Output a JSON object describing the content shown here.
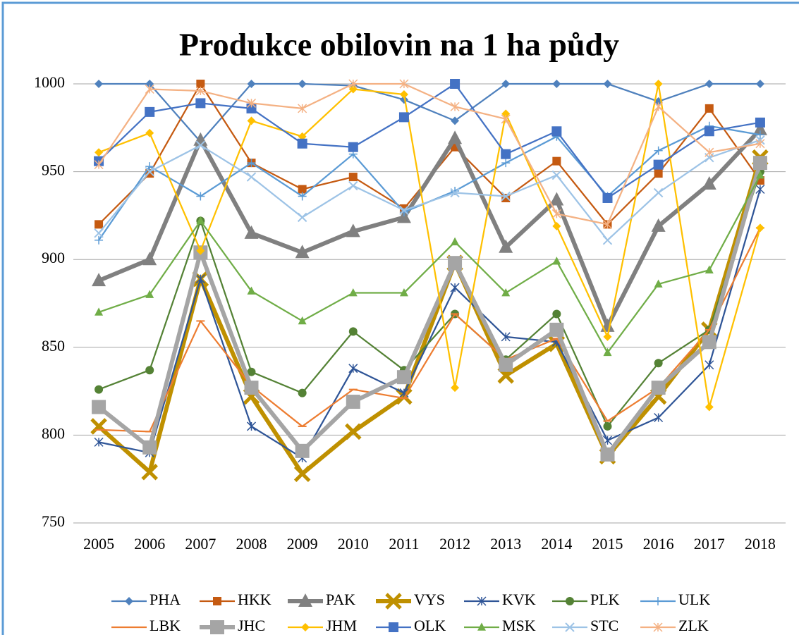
{
  "chart_data": {
    "type": "line",
    "title": "Produkce obilovin na 1 ha půdy",
    "categories": [
      "2005",
      "2006",
      "2007",
      "2008",
      "2009",
      "2010",
      "2011",
      "2012",
      "2013",
      "2014",
      "2015",
      "2016",
      "2017",
      "2018"
    ],
    "ylim": [
      750,
      1000
    ],
    "yticks": [
      750,
      800,
      850,
      900,
      950,
      1000
    ],
    "grid": true,
    "legend": "bottom",
    "series": [
      {
        "name": "PHA",
        "color": "#4f81bd",
        "marker": "diamond",
        "values": [
          1000,
          1000,
          967,
          1000,
          1000,
          999,
          991,
          979,
          1000,
          1000,
          1000,
          990,
          1000,
          1000
        ]
      },
      {
        "name": "HKK",
        "color": "#c55a11",
        "marker": "square",
        "values": [
          920,
          949,
          1000,
          955,
          940,
          947,
          929,
          964,
          935,
          956,
          920,
          949,
          986,
          945
        ]
      },
      {
        "name": "PAK",
        "color": "#808080",
        "marker": "triangle",
        "values": [
          888,
          900,
          968,
          915,
          904,
          916,
          924,
          969,
          907,
          934,
          862,
          919,
          943,
          974
        ]
      },
      {
        "name": "VYS",
        "color": "#bf9000",
        "marker": "x",
        "values": [
          805,
          779,
          889,
          822,
          778,
          802,
          822,
          898,
          834,
          852,
          788,
          822,
          860,
          958
        ]
      },
      {
        "name": "KVK",
        "color": "#2f5597",
        "marker": "star",
        "values": [
          796,
          790,
          889,
          805,
          787,
          838,
          824,
          884,
          856,
          853,
          797,
          810,
          840,
          940
        ]
      },
      {
        "name": "PLK",
        "color": "#548235",
        "marker": "circle",
        "values": [
          826,
          837,
          922,
          836,
          824,
          859,
          837,
          869,
          843,
          869,
          805,
          841,
          860,
          950
        ]
      },
      {
        "name": "ULK",
        "color": "#5b9bd5",
        "marker": "plus",
        "values": [
          911,
          953,
          936,
          955,
          936,
          960,
          927,
          939,
          955,
          970,
          936,
          962,
          976,
          971
        ]
      },
      {
        "name": "LBK",
        "color": "#ed7d31",
        "marker": "dash",
        "values": [
          803,
          802,
          865,
          828,
          805,
          826,
          821,
          869,
          843,
          855,
          808,
          827,
          860,
          918
        ]
      },
      {
        "name": "JHC",
        "color": "#a5a5a5",
        "marker": "square",
        "values": [
          816,
          793,
          904,
          827,
          791,
          819,
          833,
          898,
          840,
          860,
          789,
          827,
          853,
          955
        ]
      },
      {
        "name": "JHM",
        "color": "#ffc000",
        "marker": "diamond",
        "values": [
          961,
          972,
          905,
          979,
          970,
          997,
          994,
          827,
          983,
          919,
          856,
          1000,
          816,
          918
        ]
      },
      {
        "name": "OLK",
        "color": "#4472c4",
        "marker": "square",
        "values": [
          956,
          984,
          989,
          986,
          966,
          964,
          981,
          1000,
          960,
          973,
          935,
          954,
          973,
          978
        ]
      },
      {
        "name": "MSK",
        "color": "#70ad47",
        "marker": "triangle",
        "values": [
          870,
          880,
          922,
          882,
          865,
          881,
          881,
          910,
          881,
          899,
          847,
          886,
          894,
          948
        ]
      },
      {
        "name": "STC",
        "color": "#9dc3e6",
        "marker": "x",
        "values": [
          915,
          950,
          965,
          947,
          924,
          942,
          928,
          938,
          936,
          948,
          911,
          938,
          958,
          968
        ]
      },
      {
        "name": "ZLK",
        "color": "#f4b183",
        "marker": "star",
        "values": [
          954,
          997,
          996,
          989,
          986,
          1000,
          1000,
          987,
          980,
          926,
          920,
          987,
          961,
          966
        ]
      }
    ]
  }
}
